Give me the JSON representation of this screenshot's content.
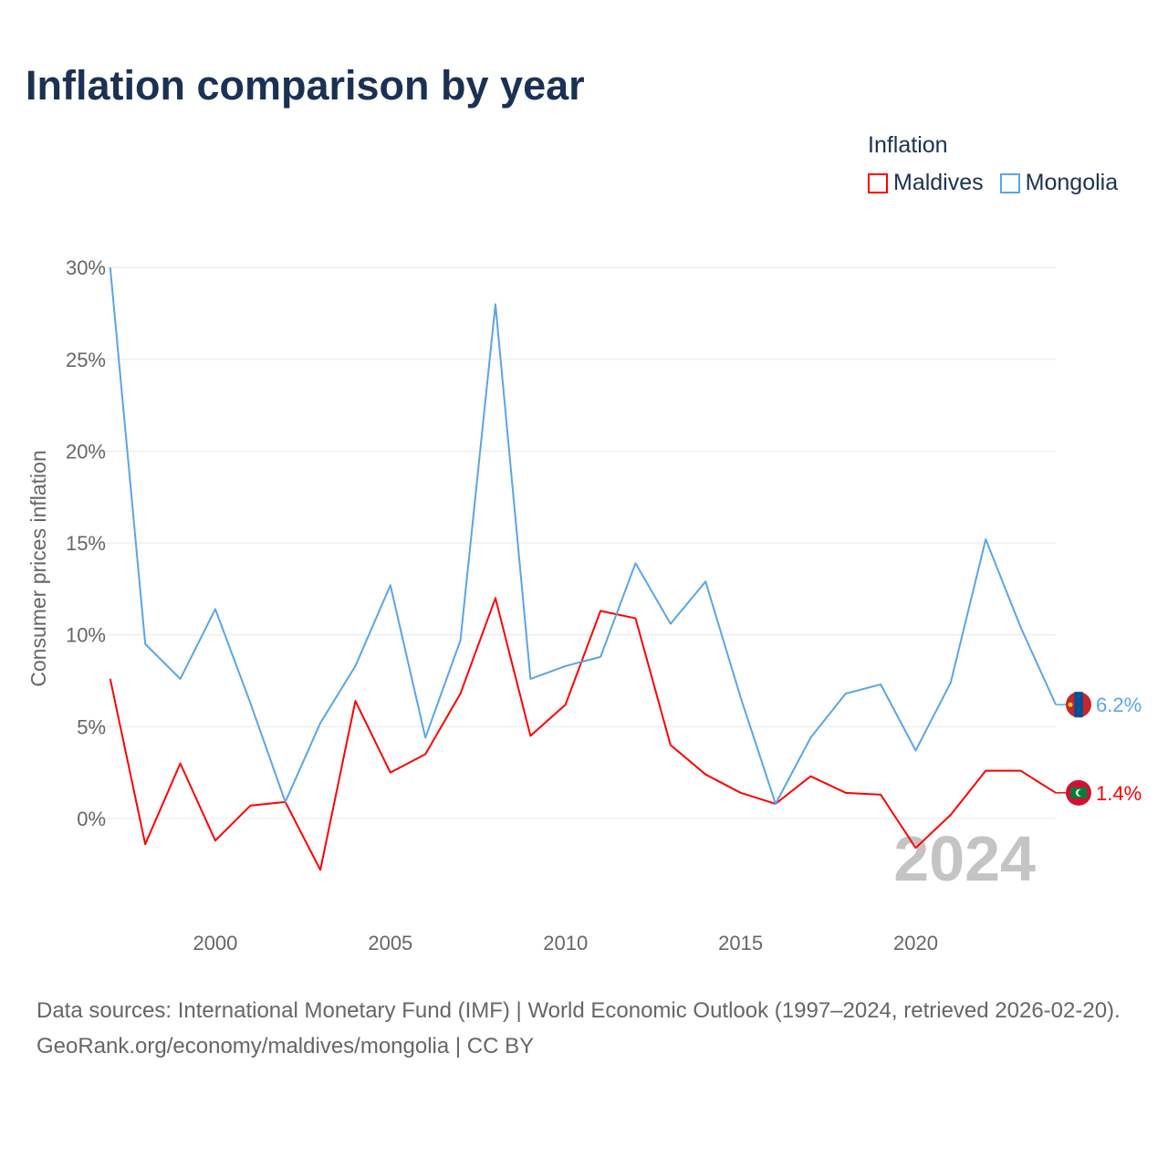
{
  "chart_data": {
    "type": "line",
    "title": "Inflation comparison by year",
    "legend_title": "Inflation",
    "ylabel": "Consumer prices inflation",
    "xlabel": "",
    "x": [
      1997,
      1998,
      1999,
      2000,
      2001,
      2002,
      2003,
      2004,
      2005,
      2006,
      2007,
      2008,
      2009,
      2010,
      2011,
      2012,
      2013,
      2014,
      2015,
      2016,
      2017,
      2018,
      2019,
      2020,
      2021,
      2022,
      2023,
      2024
    ],
    "series": [
      {
        "name": "Maldives",
        "color": "#ff0000",
        "end_label": "1.4%",
        "values": [
          7.6,
          -1.4,
          3.0,
          -1.2,
          0.7,
          0.9,
          -2.8,
          6.4,
          2.5,
          3.5,
          6.8,
          12.0,
          4.5,
          6.2,
          11.3,
          10.9,
          4.0,
          2.4,
          1.4,
          0.8,
          2.3,
          1.4,
          1.3,
          -1.6,
          0.2,
          2.6,
          2.6,
          1.4
        ]
      },
      {
        "name": "Mongolia",
        "color": "#5aa5e8",
        "end_label": "6.2%",
        "values": [
          30.0,
          9.5,
          7.6,
          11.4,
          6.3,
          0.9,
          5.2,
          8.3,
          12.7,
          4.4,
          9.7,
          28.0,
          7.6,
          8.3,
          8.8,
          13.9,
          10.6,
          12.9,
          6.6,
          0.8,
          4.4,
          6.8,
          7.3,
          3.7,
          7.4,
          15.2,
          10.4,
          6.2
        ]
      }
    ],
    "yticks": [
      0,
      5,
      10,
      15,
      20,
      25,
      30
    ],
    "ytick_labels": [
      "0%",
      "5%",
      "10%",
      "15%",
      "20%",
      "25%",
      "30%"
    ],
    "xticks": [
      2000,
      2005,
      2010,
      2015,
      2020
    ],
    "xtick_labels": [
      "2000",
      "2005",
      "2010",
      "2015",
      "2020"
    ],
    "ylim": [
      -5,
      30
    ],
    "xlim": [
      1997,
      2024
    ],
    "grid": true,
    "legend_placement": "top-right",
    "year_watermark": "2024"
  },
  "footer": {
    "sources": "Data sources: International Monetary Fund (IMF) | World Economic Outlook (1997–2024, retrieved 2026-02-20).",
    "credit": "GeoRank.org/economy/maldives/mongolia | CC BY"
  }
}
